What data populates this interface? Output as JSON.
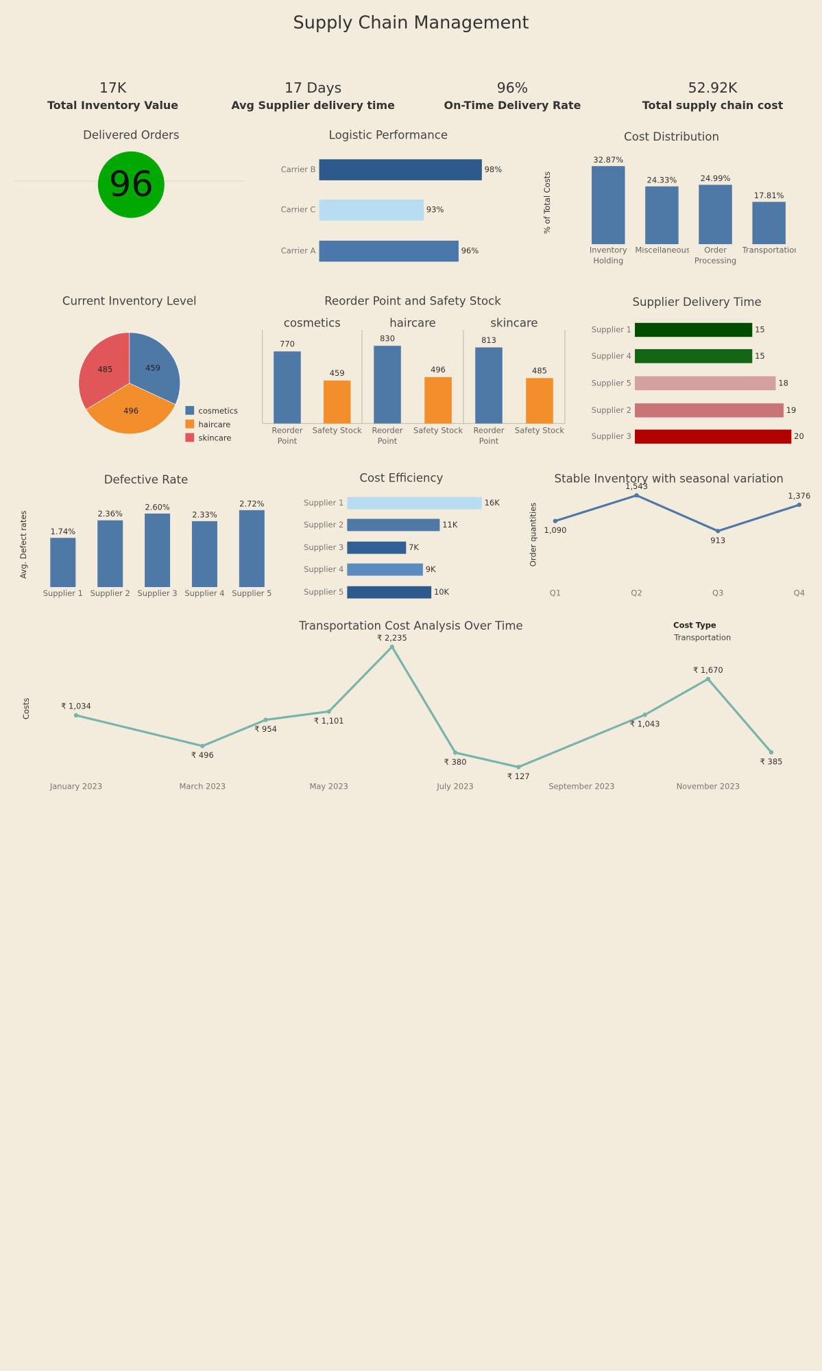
{
  "title": "Supply Chain Management",
  "kpis": [
    {
      "value": "17K",
      "label": "Total Inventory Value"
    },
    {
      "value": "17 Days",
      "label": "Avg Supplier delivery time"
    },
    {
      "value": "96%",
      "label": "On-Time Delivery Rate"
    },
    {
      "value": "52.92K",
      "label": "Total supply chain cost"
    }
  ],
  "chart_data": [
    {
      "type": "kpi",
      "title": "Delivered Orders",
      "value": 96,
      "color": "#00a800"
    },
    {
      "type": "hbar",
      "title": "Logistic Performance",
      "categories": [
        "Carrier B",
        "Carrier C",
        "Carrier A"
      ],
      "values": [
        98,
        93,
        96
      ],
      "value_labels": [
        "98%",
        "93%",
        "96%"
      ],
      "colors": [
        "#2d5a8a",
        "#b8ddf2",
        "#4a78aa"
      ],
      "xlim": [
        84,
        98
      ]
    },
    {
      "type": "bar",
      "title": "Cost Distribution",
      "ylabel": "% of Total Costs",
      "categories": [
        "Inventory Holding",
        "Miscellaneous",
        "Order Processing",
        "Transportation"
      ],
      "values": [
        32.87,
        24.33,
        24.99,
        17.81
      ],
      "value_labels": [
        "32.87%",
        "24.33%",
        "24.99%",
        "17.81%"
      ],
      "color": "#4e79a7",
      "ylim": [
        0,
        35
      ]
    },
    {
      "type": "pie",
      "title": "Current Inventory Level",
      "categories": [
        "cosmetics",
        "haircare",
        "skincare"
      ],
      "values": [
        459,
        496,
        485
      ],
      "colors": [
        "#4e79a7",
        "#f28e2b",
        "#e15759"
      ]
    },
    {
      "type": "grouped-bar",
      "title": "Reorder Point and Safety Stock",
      "categories": [
        "Reorder Point",
        "Safety Stock"
      ],
      "colors": [
        "#4e79a7",
        "#f28e2b"
      ],
      "panels": [
        {
          "name": "cosmetics",
          "values": [
            770,
            459
          ]
        },
        {
          "name": "haircare",
          "values": [
            830,
            496
          ]
        },
        {
          "name": "skincare",
          "values": [
            813,
            485
          ]
        }
      ],
      "ylim": [
        0,
        1000
      ]
    },
    {
      "type": "hbar",
      "title": "Supplier Delivery Time",
      "categories": [
        "Supplier 1",
        "Supplier 4",
        "Supplier 5",
        "Supplier 2",
        "Supplier 3"
      ],
      "values": [
        15,
        15,
        18,
        19,
        20
      ],
      "colors": [
        "#004d00",
        "#146614",
        "#d4a0a0",
        "#c87474",
        "#b00000"
      ],
      "xlim": [
        0,
        20
      ]
    },
    {
      "type": "bar",
      "title": "Defective Rate",
      "ylabel": "Avg. Defect rates",
      "categories": [
        "Supplier 1",
        "Supplier 2",
        "Supplier 3",
        "Supplier 4",
        "Supplier 5"
      ],
      "values": [
        1.74,
        2.36,
        2.6,
        2.33,
        2.72
      ],
      "value_labels": [
        "1.74%",
        "2.36%",
        "2.60%",
        "2.33%",
        "2.72%"
      ],
      "color": "#4e79a7",
      "ylim": [
        0,
        3
      ]
    },
    {
      "type": "hbar",
      "title": "Cost Efficiency",
      "categories": [
        "Supplier 1",
        "Supplier 2",
        "Supplier 3",
        "Supplier 4",
        "Supplier 5"
      ],
      "values": [
        16000,
        11000,
        7000,
        9000,
        10000
      ],
      "value_labels": [
        "16K",
        "11K",
        "7K",
        "9K",
        "10K"
      ],
      "colors": [
        "#b8ddf2",
        "#4e79a7",
        "#2f5f93",
        "#5a8cc0",
        "#2d5a8a"
      ],
      "xlim": [
        0,
        16000
      ]
    },
    {
      "type": "line",
      "title": "Stable Inventory with seasonal variation",
      "ylabel": "Order quantities",
      "categories": [
        "Q1",
        "Q2",
        "Q3",
        "Q4"
      ],
      "values": [
        1090,
        1543,
        913,
        1376
      ],
      "value_labels": [
        "1,090",
        "1,543",
        "913",
        "1,376"
      ],
      "color": "#4e79a7",
      "ylim": [
        0,
        1700
      ]
    },
    {
      "type": "line",
      "title": "Transportation Cost Analysis Over Time",
      "ylabel": "Costs",
      "legend_title": "Cost Type",
      "x": [
        "January 2023",
        "March 2023",
        "April 2023",
        "May 2023",
        "June 2023",
        "July 2023",
        "August 2023",
        "October 2023",
        "November 2023",
        "December 2023"
      ],
      "xlim": [
        "January 2023",
        "December 2023"
      ],
      "xticks": [
        "January 2023",
        "March 2023",
        "May 2023",
        "July 2023",
        "September 2023",
        "November 2023"
      ],
      "series": [
        {
          "name": "Transportation",
          "color": "#79b4ac",
          "values": [
            1034,
            496,
            954,
            1101,
            2235,
            380,
            127,
            1043,
            1670,
            385
          ],
          "value_labels": [
            "₹ 1,034",
            "₹ 496",
            "₹ 954",
            "₹ 1,101",
            "₹ 2,235",
            "₹ 380",
            "₹ 127",
            "₹ 1,043",
            "₹ 1,670",
            "₹ 385"
          ]
        }
      ],
      "ylim": [
        0,
        2300
      ]
    }
  ]
}
